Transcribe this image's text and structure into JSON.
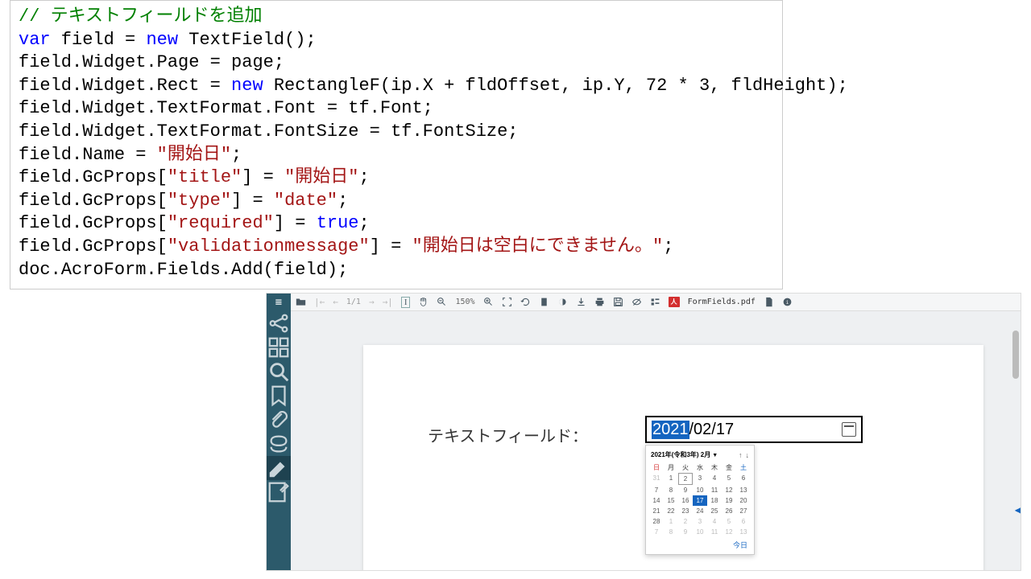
{
  "code": {
    "lines": [
      [
        {
          "t": "// テキストフィールドを追加",
          "c": "c-green"
        }
      ],
      [
        {
          "t": "var",
          "c": "c-blue"
        },
        {
          "t": " field = ",
          "c": "c-black"
        },
        {
          "t": "new",
          "c": "c-blue"
        },
        {
          "t": " TextField();",
          "c": "c-black"
        }
      ],
      [
        {
          "t": "field.Widget.Page = page;",
          "c": "c-black"
        }
      ],
      [
        {
          "t": "field.Widget.Rect = ",
          "c": "c-black"
        },
        {
          "t": "new",
          "c": "c-blue"
        },
        {
          "t": " RectangleF(ip.X + fldOffset, ip.Y, 72 * 3, fldHeight);",
          "c": "c-black"
        }
      ],
      [
        {
          "t": "field.Widget.TextFormat.Font = tf.Font;",
          "c": "c-black"
        }
      ],
      [
        {
          "t": "field.Widget.TextFormat.FontSize = tf.FontSize;",
          "c": "c-black"
        }
      ],
      [
        {
          "t": "field.Name = ",
          "c": "c-black"
        },
        {
          "t": "\"開始日\"",
          "c": "c-red"
        },
        {
          "t": ";",
          "c": "c-black"
        }
      ],
      [
        {
          "t": "field.GcProps[",
          "c": "c-black"
        },
        {
          "t": "\"title\"",
          "c": "c-red"
        },
        {
          "t": "] = ",
          "c": "c-black"
        },
        {
          "t": "\"開始日\"",
          "c": "c-red"
        },
        {
          "t": ";",
          "c": "c-black"
        }
      ],
      [
        {
          "t": "field.GcProps[",
          "c": "c-black"
        },
        {
          "t": "\"type\"",
          "c": "c-red"
        },
        {
          "t": "] = ",
          "c": "c-black"
        },
        {
          "t": "\"date\"",
          "c": "c-red"
        },
        {
          "t": ";",
          "c": "c-black"
        }
      ],
      [
        {
          "t": "field.GcProps[",
          "c": "c-black"
        },
        {
          "t": "\"required\"",
          "c": "c-red"
        },
        {
          "t": "] = ",
          "c": "c-black"
        },
        {
          "t": "true",
          "c": "c-blue"
        },
        {
          "t": ";",
          "c": "c-black"
        }
      ],
      [
        {
          "t": "field.GcProps[",
          "c": "c-black"
        },
        {
          "t": "\"validationmessage\"",
          "c": "c-red"
        },
        {
          "t": "] = ",
          "c": "c-black"
        },
        {
          "t": "\"開始日は空白にできません。\"",
          "c": "c-red"
        },
        {
          "t": ";",
          "c": "c-black"
        }
      ],
      [
        {
          "t": "doc.AcroForm.Fields.Add(field);",
          "c": "c-black"
        }
      ]
    ]
  },
  "viewer": {
    "toolbar": {
      "page": "1/1",
      "zoom": "150%",
      "pdf_label": "FormFields.pdf",
      "pdf_badge": "人"
    },
    "field_label": "テキストフィールド：",
    "date_value": {
      "year": "2021",
      "rest": "/02/17"
    },
    "calendar": {
      "title": "2021年(令和3年) 2月",
      "day_headers": [
        "日",
        "月",
        "火",
        "水",
        "木",
        "金",
        "土"
      ],
      "weeks": [
        [
          {
            "n": "31",
            "o": true
          },
          {
            "n": "1"
          },
          {
            "n": "2",
            "boxed": true
          },
          {
            "n": "3"
          },
          {
            "n": "4"
          },
          {
            "n": "5"
          },
          {
            "n": "6"
          }
        ],
        [
          {
            "n": "7"
          },
          {
            "n": "8"
          },
          {
            "n": "9"
          },
          {
            "n": "10"
          },
          {
            "n": "11"
          },
          {
            "n": "12"
          },
          {
            "n": "13"
          }
        ],
        [
          {
            "n": "14"
          },
          {
            "n": "15"
          },
          {
            "n": "16"
          },
          {
            "n": "17",
            "sel": true
          },
          {
            "n": "18"
          },
          {
            "n": "19"
          },
          {
            "n": "20"
          }
        ],
        [
          {
            "n": "21"
          },
          {
            "n": "22"
          },
          {
            "n": "23"
          },
          {
            "n": "24"
          },
          {
            "n": "25"
          },
          {
            "n": "26"
          },
          {
            "n": "27"
          }
        ],
        [
          {
            "n": "28"
          },
          {
            "n": "1",
            "o": true
          },
          {
            "n": "2",
            "o": true
          },
          {
            "n": "3",
            "o": true
          },
          {
            "n": "4",
            "o": true
          },
          {
            "n": "5",
            "o": true
          },
          {
            "n": "6",
            "o": true
          }
        ],
        [
          {
            "n": "7",
            "o": true
          },
          {
            "n": "8",
            "o": true
          },
          {
            "n": "9",
            "o": true
          },
          {
            "n": "10",
            "o": true
          },
          {
            "n": "11",
            "o": true
          },
          {
            "n": "12",
            "o": true
          },
          {
            "n": "13",
            "o": true
          }
        ]
      ],
      "today": "今日"
    }
  }
}
